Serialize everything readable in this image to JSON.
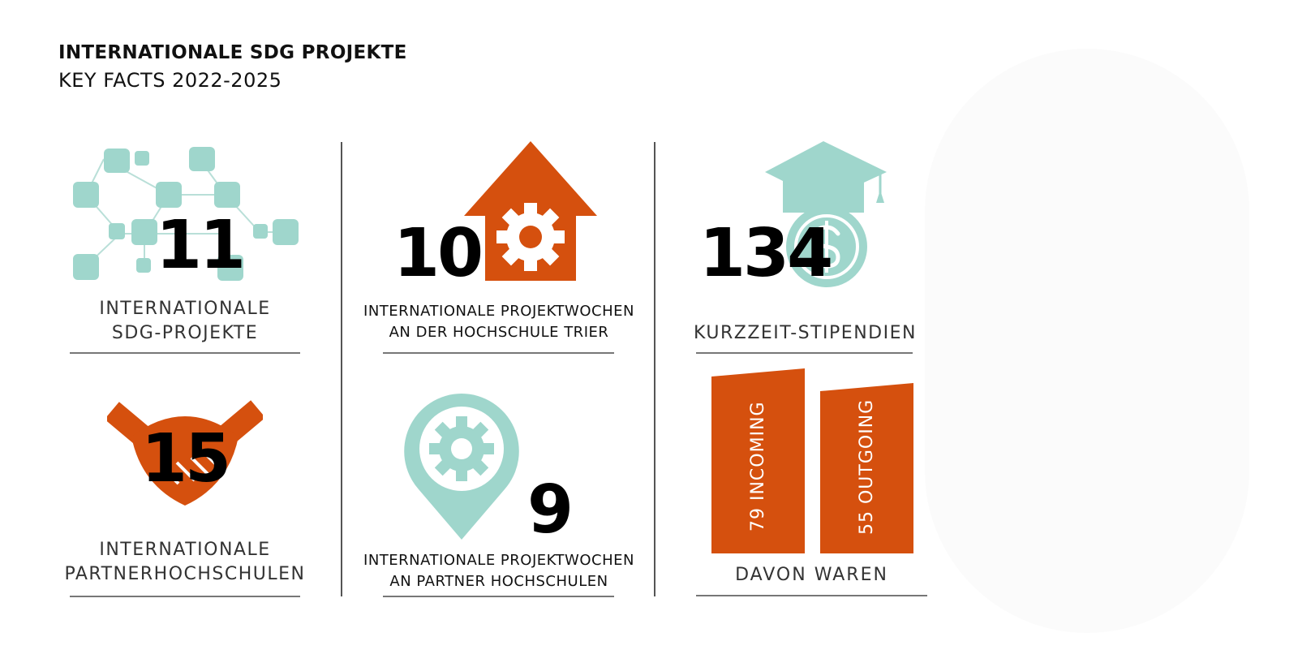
{
  "header": {
    "title": "INTERNATIONALE SDG PROJEKTE",
    "subtitle": "KEY FACTS 2022-2025"
  },
  "colors": {
    "teal": "#9fd6cc",
    "orange": "#d5500e",
    "text": "#111111"
  },
  "facts": [
    {
      "value": "11",
      "label_lines": [
        "INTERNATIONALE",
        "SDG-PROJEKTE"
      ],
      "icon": "network-icon"
    },
    {
      "value": "10",
      "label_lines": [
        "INTERNATIONALE PROJEKTWOCHEN",
        "AN DER HOCHSCHULE TRIER"
      ],
      "icon": "house-gear-icon"
    },
    {
      "value": "134",
      "label_lines": [
        "KURZZEIT-STIPENDIEN"
      ],
      "icon": "graduation-cap-coin-icon"
    },
    {
      "value": "15",
      "label_lines": [
        "INTERNATIONALE",
        "PARTNERHOCHSCHULEN"
      ],
      "icon": "handshake-icon"
    },
    {
      "value": "9",
      "label_lines": [
        "INTERNATIONALE PROJEKTWOCHEN",
        "AN PARTNER HOCHSCHULEN"
      ],
      "icon": "location-pin-gear-icon"
    }
  ],
  "breakdown": {
    "caption": "DAVON WAREN",
    "bars": [
      {
        "label": "79 INCOMING",
        "value": 79
      },
      {
        "label": "55 OUTGOING",
        "value": 55
      }
    ]
  }
}
